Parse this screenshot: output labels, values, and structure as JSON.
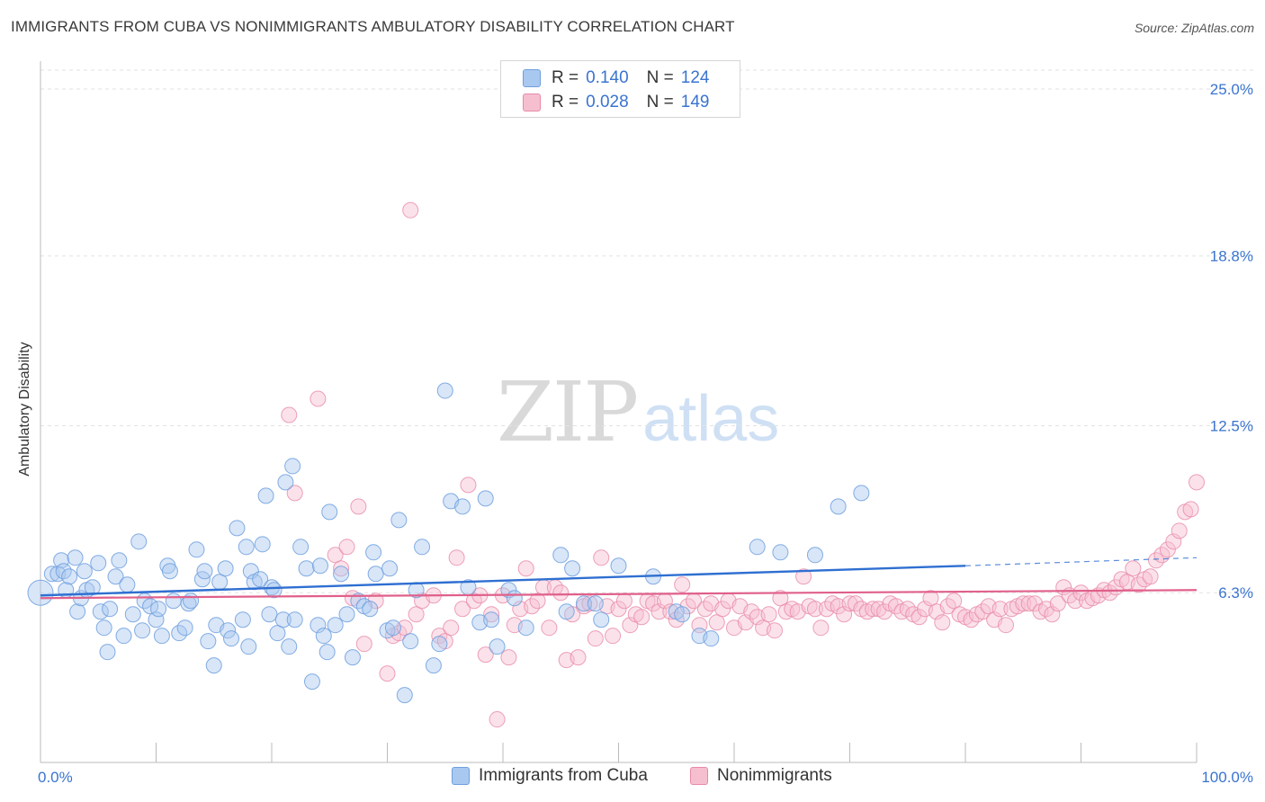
{
  "header": {
    "title": "IMMIGRANTS FROM CUBA VS NONIMMIGRANTS AMBULATORY DISABILITY CORRELATION CHART",
    "source": "Source: ZipAtlas.com"
  },
  "watermark": {
    "zip": "ZIP",
    "atlas": "atlas"
  },
  "legend": {
    "rows": [
      {
        "r_label": "R =",
        "r_value": "0.140",
        "n_label": "N =",
        "n_value": "124",
        "color": "#a9c8f0",
        "border": "#6f9fde"
      },
      {
        "r_label": "R =",
        "r_value": "0.028",
        "n_label": "N =",
        "n_value": "149",
        "color": "#f6bfd0",
        "border": "#e88aa8"
      }
    ]
  },
  "bottom_legend": {
    "items": [
      {
        "label": "Immigrants from Cuba",
        "color": "#a9c8f0",
        "border": "#6f9fde"
      },
      {
        "label": "Nonimmigrants",
        "color": "#f6bfd0",
        "border": "#e88aa8"
      }
    ]
  },
  "colors": {
    "blue_fill": "rgba(169,200,240,0.45)",
    "blue_stroke": "#6f9fde",
    "blue_line": "#2f6fd1",
    "pink_fill": "rgba(246,191,208,0.45)",
    "pink_stroke": "#e88aa8",
    "pink_line": "#e0608a",
    "axis_text": "#3a74d0",
    "grid": "#e2e2e2"
  },
  "chart_data": {
    "type": "scatter",
    "title": "IMMIGRANTS FROM CUBA VS NONIMMIGRANTS AMBULATORY DISABILITY CORRELATION CHART",
    "xlabel": "",
    "ylabel": "Ambulatory Disability",
    "xlim": [
      0,
      100
    ],
    "ylim": [
      0,
      25.7
    ],
    "x_tick_labels": [
      "0.0%",
      "100.0%"
    ],
    "y_ticks": [
      6.3,
      12.5,
      18.8,
      25.0
    ],
    "y_tick_labels": [
      "6.3%",
      "12.5%",
      "18.8%",
      "25.0%"
    ],
    "grid": "horizontal dashed",
    "legend_position": "top-center",
    "series": [
      {
        "name": "Immigrants from Cuba",
        "R": 0.14,
        "N": 124,
        "trend": {
          "x": [
            0,
            80
          ],
          "y": [
            6.2,
            7.3
          ],
          "dashed_x": [
            80,
            100
          ],
          "dashed_y": [
            7.3,
            7.6
          ]
        },
        "points": [
          [
            0.0,
            6.3
          ],
          [
            1.0,
            7.0
          ],
          [
            1.5,
            7.0
          ],
          [
            1.8,
            7.5
          ],
          [
            2.0,
            7.1
          ],
          [
            2.2,
            6.4
          ],
          [
            2.5,
            6.9
          ],
          [
            3.0,
            7.6
          ],
          [
            3.2,
            5.6
          ],
          [
            3.5,
            6.1
          ],
          [
            3.8,
            7.1
          ],
          [
            4.0,
            6.4
          ],
          [
            4.5,
            6.5
          ],
          [
            5.0,
            7.4
          ],
          [
            5.2,
            5.6
          ],
          [
            5.5,
            5.0
          ],
          [
            5.8,
            4.1
          ],
          [
            6.0,
            5.7
          ],
          [
            6.5,
            6.9
          ],
          [
            6.8,
            7.5
          ],
          [
            7.2,
            4.7
          ],
          [
            7.5,
            6.6
          ],
          [
            8.0,
            5.5
          ],
          [
            8.5,
            8.2
          ],
          [
            8.8,
            4.9
          ],
          [
            9.0,
            6.0
          ],
          [
            9.5,
            5.8
          ],
          [
            10.0,
            5.3
          ],
          [
            10.2,
            5.7
          ],
          [
            10.5,
            4.7
          ],
          [
            11.0,
            7.3
          ],
          [
            11.2,
            7.1
          ],
          [
            11.5,
            6.0
          ],
          [
            12.0,
            4.8
          ],
          [
            12.5,
            5.0
          ],
          [
            12.8,
            5.9
          ],
          [
            13.0,
            6.0
          ],
          [
            13.5,
            7.9
          ],
          [
            14.0,
            6.8
          ],
          [
            14.2,
            7.1
          ],
          [
            14.5,
            4.5
          ],
          [
            15.0,
            3.6
          ],
          [
            15.2,
            5.1
          ],
          [
            15.5,
            6.7
          ],
          [
            16.0,
            7.2
          ],
          [
            16.2,
            4.9
          ],
          [
            16.5,
            4.6
          ],
          [
            17.0,
            8.7
          ],
          [
            17.5,
            5.3
          ],
          [
            17.8,
            8.0
          ],
          [
            18.0,
            4.3
          ],
          [
            18.2,
            7.1
          ],
          [
            18.5,
            6.7
          ],
          [
            19.0,
            6.8
          ],
          [
            19.2,
            8.1
          ],
          [
            19.5,
            9.9
          ],
          [
            19.8,
            5.5
          ],
          [
            20.0,
            6.5
          ],
          [
            20.2,
            6.4
          ],
          [
            20.5,
            4.8
          ],
          [
            21.0,
            5.3
          ],
          [
            21.2,
            10.4
          ],
          [
            21.5,
            4.3
          ],
          [
            21.8,
            11.0
          ],
          [
            22.0,
            5.3
          ],
          [
            22.5,
            8.0
          ],
          [
            23.0,
            7.2
          ],
          [
            23.5,
            3.0
          ],
          [
            24.0,
            5.1
          ],
          [
            24.2,
            7.3
          ],
          [
            24.5,
            4.7
          ],
          [
            24.8,
            4.1
          ],
          [
            25.0,
            9.3
          ],
          [
            25.5,
            5.1
          ],
          [
            26.0,
            7.0
          ],
          [
            26.5,
            5.5
          ],
          [
            27.0,
            3.9
          ],
          [
            27.5,
            6.0
          ],
          [
            28.0,
            5.8
          ],
          [
            28.5,
            5.7
          ],
          [
            28.8,
            7.8
          ],
          [
            29.0,
            7.0
          ],
          [
            30.0,
            4.9
          ],
          [
            30.2,
            7.2
          ],
          [
            30.5,
            5.0
          ],
          [
            31.0,
            9.0
          ],
          [
            31.5,
            2.5
          ],
          [
            32.0,
            4.5
          ],
          [
            32.5,
            6.4
          ],
          [
            33.0,
            8.0
          ],
          [
            34.0,
            3.6
          ],
          [
            34.5,
            4.4
          ],
          [
            35.0,
            13.8
          ],
          [
            35.5,
            9.7
          ],
          [
            36.5,
            9.5
          ],
          [
            37.0,
            6.5
          ],
          [
            38.0,
            5.2
          ],
          [
            38.5,
            9.8
          ],
          [
            39.0,
            5.3
          ],
          [
            39.5,
            4.3
          ],
          [
            40.5,
            6.4
          ],
          [
            41.0,
            6.1
          ],
          [
            42.0,
            5.0
          ],
          [
            45.0,
            7.7
          ],
          [
            45.5,
            5.6
          ],
          [
            46.0,
            7.2
          ],
          [
            47.0,
            5.9
          ],
          [
            48.0,
            5.9
          ],
          [
            48.5,
            5.3
          ],
          [
            50.0,
            7.3
          ],
          [
            53.0,
            6.9
          ],
          [
            55.0,
            5.6
          ],
          [
            55.5,
            5.5
          ],
          [
            57.0,
            4.7
          ],
          [
            58.0,
            4.6
          ],
          [
            62.0,
            8.0
          ],
          [
            64.0,
            7.8
          ],
          [
            67.0,
            7.7
          ],
          [
            69.0,
            9.5
          ],
          [
            71.0,
            10.0
          ]
        ]
      },
      {
        "name": "Nonimmigrants",
        "R": 0.028,
        "N": 149,
        "trend": {
          "x": [
            0,
            100
          ],
          "y": [
            6.1,
            6.4
          ]
        },
        "points": [
          [
            21.5,
            12.9
          ],
          [
            22.0,
            10.0
          ],
          [
            24.0,
            13.5
          ],
          [
            25.5,
            7.7
          ],
          [
            26.0,
            7.2
          ],
          [
            26.5,
            8.0
          ],
          [
            27.0,
            6.1
          ],
          [
            27.5,
            9.5
          ],
          [
            28.0,
            4.4
          ],
          [
            29.0,
            6.0
          ],
          [
            30.0,
            3.3
          ],
          [
            30.5,
            4.7
          ],
          [
            31.0,
            4.8
          ],
          [
            31.5,
            5.0
          ],
          [
            32.0,
            20.5
          ],
          [
            32.5,
            5.5
          ],
          [
            33.0,
            6.0
          ],
          [
            34.0,
            6.2
          ],
          [
            34.5,
            4.7
          ],
          [
            35.0,
            4.5
          ],
          [
            35.5,
            5.0
          ],
          [
            36.0,
            7.6
          ],
          [
            36.5,
            5.7
          ],
          [
            37.0,
            10.3
          ],
          [
            37.5,
            6.0
          ],
          [
            38.0,
            6.2
          ],
          [
            38.5,
            4.0
          ],
          [
            39.0,
            5.5
          ],
          [
            39.5,
            1.6
          ],
          [
            40.0,
            6.2
          ],
          [
            40.5,
            3.9
          ],
          [
            41.0,
            5.1
          ],
          [
            41.5,
            5.7
          ],
          [
            42.0,
            7.2
          ],
          [
            42.5,
            5.8
          ],
          [
            43.0,
            6.0
          ],
          [
            43.5,
            6.5
          ],
          [
            44.0,
            5.0
          ],
          [
            44.5,
            6.5
          ],
          [
            45.0,
            6.3
          ],
          [
            45.5,
            3.8
          ],
          [
            46.0,
            5.5
          ],
          [
            46.5,
            3.9
          ],
          [
            47.0,
            5.8
          ],
          [
            47.5,
            5.9
          ],
          [
            48.0,
            4.6
          ],
          [
            48.5,
            7.6
          ],
          [
            49.0,
            5.8
          ],
          [
            49.5,
            4.7
          ],
          [
            50.0,
            5.7
          ],
          [
            50.5,
            6.0
          ],
          [
            51.0,
            5.1
          ],
          [
            51.5,
            5.5
          ],
          [
            52.0,
            5.4
          ],
          [
            52.5,
            6.0
          ],
          [
            53.0,
            5.9
          ],
          [
            53.5,
            5.6
          ],
          [
            54.0,
            6.0
          ],
          [
            54.5,
            5.6
          ],
          [
            55.0,
            5.3
          ],
          [
            55.5,
            6.6
          ],
          [
            56.0,
            5.8
          ],
          [
            56.5,
            6.0
          ],
          [
            57.0,
            5.1
          ],
          [
            57.5,
            5.7
          ],
          [
            58.0,
            5.9
          ],
          [
            58.5,
            5.2
          ],
          [
            59.0,
            5.7
          ],
          [
            59.5,
            6.0
          ],
          [
            60.0,
            5.0
          ],
          [
            60.5,
            5.8
          ],
          [
            61.0,
            5.2
          ],
          [
            61.5,
            5.6
          ],
          [
            62.0,
            5.4
          ],
          [
            62.5,
            5.0
          ],
          [
            63.0,
            5.5
          ],
          [
            63.5,
            4.9
          ],
          [
            64.0,
            6.1
          ],
          [
            64.5,
            5.6
          ],
          [
            65.0,
            5.7
          ],
          [
            65.5,
            5.6
          ],
          [
            66.0,
            6.9
          ],
          [
            66.5,
            5.8
          ],
          [
            67.0,
            5.7
          ],
          [
            67.5,
            5.0
          ],
          [
            68.0,
            5.7
          ],
          [
            68.5,
            5.9
          ],
          [
            69.0,
            5.8
          ],
          [
            69.5,
            5.5
          ],
          [
            70.0,
            5.9
          ],
          [
            70.5,
            5.9
          ],
          [
            71.0,
            5.7
          ],
          [
            71.5,
            5.6
          ],
          [
            72.0,
            5.7
          ],
          [
            72.5,
            5.7
          ],
          [
            73.0,
            5.6
          ],
          [
            73.5,
            5.9
          ],
          [
            74.0,
            5.8
          ],
          [
            74.5,
            5.6
          ],
          [
            75.0,
            5.7
          ],
          [
            75.5,
            5.5
          ],
          [
            76.0,
            5.4
          ],
          [
            76.5,
            5.7
          ],
          [
            77.0,
            6.1
          ],
          [
            77.5,
            5.6
          ],
          [
            78.0,
            5.2
          ],
          [
            78.5,
            5.8
          ],
          [
            79.0,
            6.0
          ],
          [
            79.5,
            5.5
          ],
          [
            80.0,
            5.4
          ],
          [
            80.5,
            5.3
          ],
          [
            81.0,
            5.5
          ],
          [
            81.5,
            5.6
          ],
          [
            82.0,
            5.8
          ],
          [
            82.5,
            5.3
          ],
          [
            83.0,
            5.7
          ],
          [
            83.5,
            5.1
          ],
          [
            84.0,
            5.7
          ],
          [
            84.5,
            5.8
          ],
          [
            85.0,
            5.9
          ],
          [
            85.5,
            5.9
          ],
          [
            86.0,
            5.9
          ],
          [
            86.5,
            5.6
          ],
          [
            87.0,
            5.7
          ],
          [
            87.5,
            5.5
          ],
          [
            88.0,
            5.9
          ],
          [
            88.5,
            6.5
          ],
          [
            89.0,
            6.2
          ],
          [
            89.5,
            6.0
          ],
          [
            90.0,
            6.3
          ],
          [
            90.5,
            6.0
          ],
          [
            91.0,
            6.1
          ],
          [
            91.5,
            6.2
          ],
          [
            92.0,
            6.4
          ],
          [
            92.5,
            6.3
          ],
          [
            93.0,
            6.5
          ],
          [
            93.5,
            6.8
          ],
          [
            94.0,
            6.7
          ],
          [
            94.5,
            7.2
          ],
          [
            95.0,
            6.6
          ],
          [
            95.5,
            6.8
          ],
          [
            96.0,
            6.9
          ],
          [
            96.5,
            7.5
          ],
          [
            97.0,
            7.7
          ],
          [
            97.5,
            7.9
          ],
          [
            98.0,
            8.2
          ],
          [
            98.5,
            8.6
          ],
          [
            99.0,
            9.3
          ],
          [
            99.5,
            9.4
          ],
          [
            100.0,
            10.4
          ]
        ]
      }
    ]
  }
}
